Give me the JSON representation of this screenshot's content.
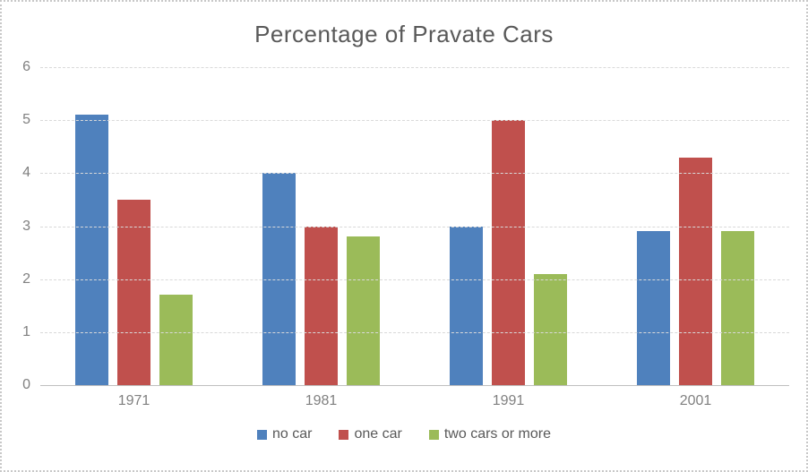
{
  "chart": {
    "title": "Percentage of Pravate Cars"
  },
  "chart_data": {
    "type": "bar",
    "title": "Percentage of Pravate Cars",
    "categories": [
      "1971",
      "1981",
      "1991",
      "2001"
    ],
    "series": [
      {
        "name": "no car",
        "color": "#4F81BD",
        "values": [
          5.1,
          4.0,
          3.0,
          2.9
        ]
      },
      {
        "name": "one car",
        "color": "#C0504D",
        "values": [
          3.5,
          3.0,
          5.0,
          4.3
        ]
      },
      {
        "name": "two cars or more",
        "color": "#9BBB59",
        "values": [
          1.7,
          2.8,
          2.1,
          2.9
        ]
      }
    ],
    "xlabel": "",
    "ylabel": "",
    "ylim": [
      0,
      6
    ],
    "yticks": [
      0,
      1,
      2,
      3,
      4,
      5,
      6
    ],
    "grid": true,
    "gridline_color": "#D9D9D9",
    "axis_line_color": "#BFBFBF",
    "title_color": "#595959",
    "tick_label_color": "#808080",
    "legend_position": "bottom"
  }
}
